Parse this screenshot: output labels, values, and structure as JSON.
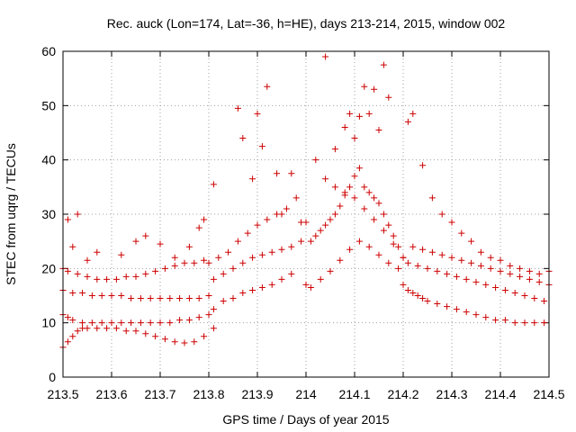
{
  "chart_data": {
    "type": "scatter",
    "title": "Rec. auck (Lon=174, Lat=-36, h=HE), days 213-214, 2015, window 002",
    "xlabel": "GPS time / Days of year 2015",
    "ylabel": "STEC from uqrg / TECUs",
    "xlim": [
      213.5,
      214.5
    ],
    "ylim": [
      0,
      60
    ],
    "xticks": [
      "213.5",
      "213.6",
      "213.7",
      "213.8",
      "213.9",
      "214",
      "214.1",
      "214.2",
      "214.3",
      "214.4",
      "214.5"
    ],
    "yticks": [
      "0",
      "10",
      "20",
      "30",
      "40",
      "50",
      "60"
    ],
    "grid": true,
    "marker": "plus",
    "color": "#cc0000",
    "x": [
      213.5,
      213.51,
      213.52,
      213.53,
      213.54,
      213.55,
      213.57,
      213.59,
      213.61,
      213.63,
      213.65,
      213.67,
      213.69,
      213.71,
      213.73,
      213.75,
      213.77,
      213.79,
      213.81,
      213.5,
      213.51,
      213.52,
      213.54,
      213.56,
      213.58,
      213.6,
      213.62,
      213.64,
      213.66,
      213.68,
      213.7,
      213.72,
      213.74,
      213.76,
      213.78,
      213.8,
      213.5,
      213.52,
      213.54,
      213.56,
      213.58,
      213.6,
      213.62,
      213.64,
      213.66,
      213.68,
      213.7,
      213.72,
      213.74,
      213.76,
      213.78,
      213.8,
      213.5,
      213.51,
      213.53,
      213.55,
      213.57,
      213.59,
      213.61,
      213.63,
      213.65,
      213.67,
      213.69,
      213.71,
      213.73,
      213.75,
      213.77,
      213.79,
      213.51,
      213.52,
      213.53,
      213.55,
      213.57,
      213.62,
      213.65,
      213.67,
      213.7,
      213.73,
      213.76,
      213.78,
      213.79,
      213.81,
      213.83,
      213.85,
      213.87,
      213.89,
      213.91,
      213.93,
      213.95,
      213.97,
      213.81,
      213.83,
      213.85,
      213.87,
      213.89,
      213.91,
      213.93,
      213.95,
      213.97,
      213.99,
      213.8,
      213.82,
      213.84,
      213.86,
      213.88,
      213.9,
      213.92,
      213.94,
      213.96,
      213.98,
      213.81,
      213.86,
      213.87,
      213.89,
      213.9,
      213.91,
      213.92,
      213.94,
      213.95,
      213.97,
      213.99,
      214.0,
      214.01,
      214.02,
      214.03,
      214.04,
      214.05,
      214.06,
      214.07,
      214.08,
      214.09,
      214.1,
      214.11,
      214.12,
      214.13,
      214.14,
      214.15,
      214.16,
      214.17,
      214.18,
      214.19,
      214.2,
      214.0,
      214.02,
      214.04,
      214.06,
      214.08,
      214.1,
      214.12,
      214.14,
      214.16,
      214.18,
      214.2,
      214.01,
      214.03,
      214.05,
      214.07,
      214.09,
      214.11,
      214.13,
      214.15,
      214.17,
      214.19,
      214.06,
      214.08,
      214.09,
      214.1,
      214.11,
      214.12,
      214.13,
      214.14,
      214.15,
      214.16,
      214.17,
      214.04,
      214.2,
      214.21,
      214.22,
      214.23,
      214.24,
      214.25,
      214.27,
      214.29,
      214.31,
      214.33,
      214.35,
      214.37,
      214.39,
      214.41,
      214.43,
      214.45,
      214.47,
      214.49,
      214.21,
      214.23,
      214.25,
      214.27,
      214.29,
      214.31,
      214.33,
      214.35,
      214.37,
      214.39,
      214.41,
      214.43,
      214.45,
      214.47,
      214.49,
      214.22,
      214.24,
      214.26,
      214.28,
      214.3,
      214.32,
      214.34,
      214.36,
      214.38,
      214.4,
      214.42,
      214.44,
      214.46,
      214.48,
      214.5,
      214.21,
      214.22,
      214.24,
      214.26,
      214.28,
      214.3,
      214.32,
      214.34,
      214.36,
      214.38,
      214.4,
      214.42,
      214.44,
      214.46,
      214.48,
      214.5
    ],
    "y": [
      5.5,
      6.5,
      7.5,
      8.5,
      9.0,
      9.0,
      9.0,
      9.0,
      9.0,
      8.5,
      8.5,
      8.0,
      7.5,
      7.0,
      6.5,
      6.3,
      6.5,
      7.5,
      9.0,
      11.5,
      11.0,
      10.5,
      10.0,
      10.0,
      10.0,
      10.0,
      10.0,
      10.0,
      10.0,
      10.0,
      10.0,
      10.0,
      10.5,
      10.5,
      11.0,
      11.5,
      16.0,
      15.5,
      15.5,
      15.0,
      15.0,
      15.0,
      15.0,
      14.5,
      14.5,
      14.5,
      14.5,
      14.5,
      14.5,
      14.5,
      14.5,
      15.0,
      20.0,
      19.5,
      19.0,
      18.5,
      18.0,
      18.0,
      18.0,
      18.5,
      18.5,
      19.0,
      19.5,
      20.0,
      20.5,
      21.0,
      21.0,
      21.5,
      29.0,
      24.0,
      30.0,
      21.5,
      23.0,
      22.5,
      25.0,
      26.0,
      24.5,
      22.0,
      24.0,
      27.5,
      29.0,
      12.5,
      14.0,
      14.5,
      15.5,
      16.0,
      16.5,
      17.0,
      18.0,
      19.0,
      18.0,
      19.0,
      20.0,
      21.0,
      22.0,
      22.5,
      23.0,
      23.5,
      24.0,
      25.0,
      21.0,
      22.0,
      23.0,
      25.0,
      26.5,
      28.0,
      29.0,
      30.0,
      31.0,
      33.0,
      35.5,
      49.5,
      44.0,
      36.5,
      48.5,
      42.5,
      53.5,
      37.5,
      30.0,
      37.5,
      28.5,
      17.0,
      25.0,
      26.0,
      27.0,
      28.0,
      29.0,
      30.0,
      31.5,
      33.5,
      35.0,
      37.0,
      38.5,
      35.0,
      34.0,
      33.0,
      32.0,
      30.0,
      28.0,
      26.0,
      24.0,
      22.0,
      28.5,
      40.0,
      36.5,
      35.0,
      34.0,
      33.0,
      31.0,
      29.0,
      27.0,
      24.5,
      22.0,
      16.5,
      18.0,
      19.5,
      21.5,
      23.5,
      25.0,
      24.0,
      22.5,
      21.0,
      20.0,
      42.0,
      46.0,
      48.5,
      44.0,
      48.0,
      53.5,
      48.5,
      53.0,
      45.5,
      57.5,
      51.5,
      59.0,
      17.0,
      16.0,
      15.5,
      15.0,
      14.5,
      14.0,
      13.5,
      13.0,
      12.5,
      12.0,
      11.5,
      11.0,
      10.5,
      10.5,
      10.0,
      10.0,
      10.0,
      10.0,
      21.0,
      20.5,
      20.0,
      19.5,
      19.0,
      18.5,
      18.0,
      17.5,
      17.0,
      16.5,
      16.0,
      15.5,
      15.0,
      14.5,
      14.0,
      24.0,
      23.5,
      23.0,
      22.5,
      22.0,
      21.5,
      21.0,
      20.5,
      20.0,
      19.5,
      19.0,
      18.5,
      18.0,
      17.5,
      17.0,
      47.0,
      48.5,
      39.0,
      33.0,
      30.0,
      28.5,
      26.5,
      25.0,
      23.0,
      22.0,
      21.5,
      20.5,
      20.0,
      19.5,
      19.0,
      19.5
    ]
  }
}
